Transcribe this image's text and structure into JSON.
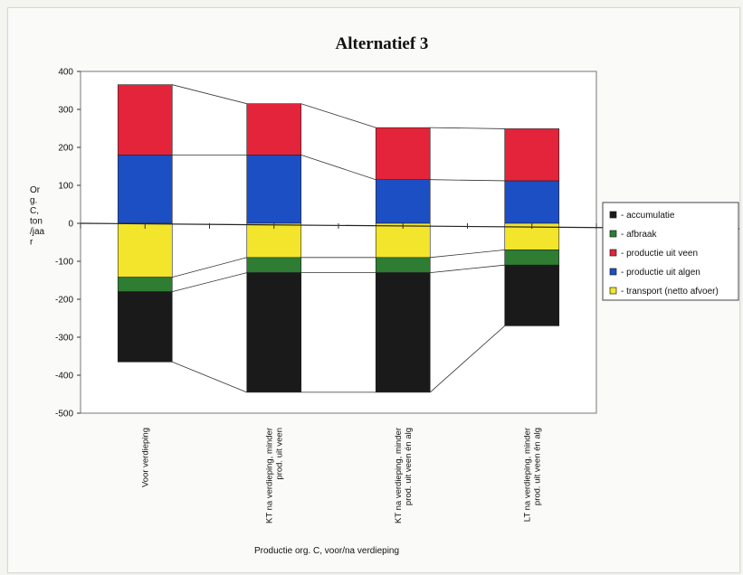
{
  "chart_data": {
    "type": "bar",
    "stacked": true,
    "title": "Alternatief 3",
    "xlabel": "Productie org. C, voor/na verdieping",
    "ylabel": "Org. C, ton /jaar",
    "ylabel_lines": [
      "Or",
      "g.",
      "C,",
      "ton",
      "/jaa",
      "r"
    ],
    "ylim": [
      -500,
      400
    ],
    "yticks": [
      400,
      300,
      200,
      100,
      0,
      -100,
      -200,
      -300,
      -400,
      -500
    ],
    "categories": [
      "Voor verdieping",
      "KT na verdieping, minder prod. uit veen",
      "KT na verdieping, minder prod. uit veen én alg",
      "LT na verdieping, minder prod. uit veen én alg"
    ],
    "category_lines": [
      [
        "Voor verdieping"
      ],
      [
        "KT na verdieping, minder",
        "prod. uit veen"
      ],
      [
        "KT na verdieping, minder",
        "prod. uit veen én alg"
      ],
      [
        "LT na verdieping, minder",
        "prod. uit veen én alg"
      ]
    ],
    "series": [
      {
        "name": "- accumulatie",
        "color": "#1a1a1a",
        "values": [
          -185,
          -315,
          -315,
          -160
        ]
      },
      {
        "name": "- afbraak",
        "color": "#2e7d32",
        "values": [
          -38,
          -40,
          -40,
          -40
        ]
      },
      {
        "name": "- productie uit veen",
        "color": "#e3243a",
        "values": [
          185,
          135,
          137,
          137
        ]
      },
      {
        "name": "- productie uit algen",
        "color": "#1c4fc4",
        "values": [
          180,
          180,
          115,
          112
        ]
      },
      {
        "name": "- transport (netto afvoer)",
        "color": "#f2e52c",
        "values": [
          -142,
          -90,
          -90,
          -70
        ]
      }
    ],
    "positive_stack_order": [
      "- productie uit algen",
      "- productie uit veen"
    ],
    "negative_stack_order": [
      "- transport (netto afvoer)",
      "- afbraak",
      "- accumulatie"
    ],
    "grid": false,
    "connector_lines": true,
    "legend_position": "right",
    "legend_order": [
      "- accumulatie",
      "- afbraak",
      "- productie uit veen",
      "- productie uit algen",
      "- transport (netto afvoer)"
    ]
  }
}
